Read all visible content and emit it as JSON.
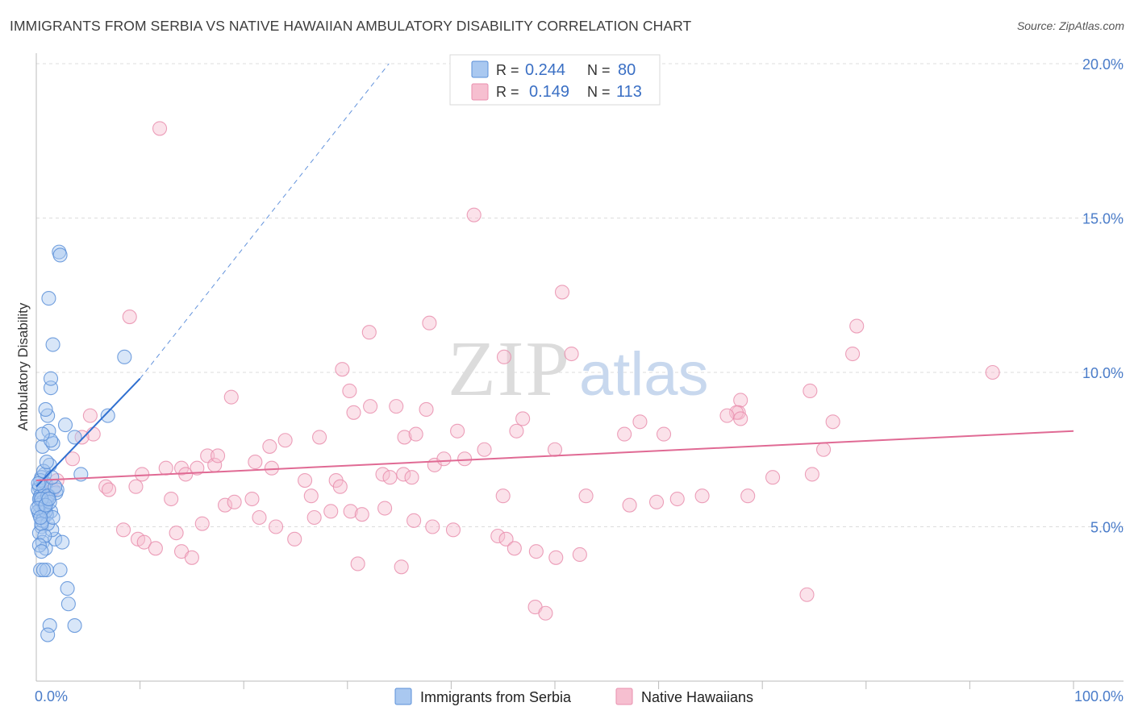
{
  "title": "IMMIGRANTS FROM SERBIA VS NATIVE HAWAIIAN AMBULATORY DISABILITY CORRELATION CHART",
  "source": "Source: ZipAtlas.com",
  "watermark": {
    "part1": "ZIP",
    "part2": "atlas"
  },
  "legend_top": {
    "series1": {
      "r_label": "R =",
      "r_value": "0.244",
      "n_label": "N =",
      "n_value": "80"
    },
    "series2": {
      "r_label": "R =",
      "r_value": "0.149",
      "n_label": "N =",
      "n_value": "113"
    }
  },
  "legend_bottom": {
    "series1": "Immigrants from Serbia",
    "series2": "Native Hawaiians"
  },
  "colors": {
    "blue_fill": "#a9c8f0",
    "blue_stroke": "#5a8fd8",
    "blue_line": "#2f6fd0",
    "pink_fill": "#f6bfd0",
    "pink_stroke": "#e98fae",
    "pink_line": "#e06a94",
    "grid": "#dcdcdc",
    "tick_text": "#4a7cc9"
  },
  "chart_data": {
    "type": "scatter",
    "title": "IMMIGRANTS FROM SERBIA VS NATIVE HAWAIIAN AMBULATORY DISABILITY CORRELATION CHART",
    "xlabel": "",
    "ylabel": "Ambulatory Disability",
    "xlim": [
      0,
      100
    ],
    "ylim": [
      0,
      20
    ],
    "x_tick_labels": [
      "0.0%",
      "100.0%"
    ],
    "y_ticks": [
      5,
      10,
      15,
      20
    ],
    "y_tick_labels": [
      "5.0%",
      "10.0%",
      "15.0%",
      "20.0%"
    ],
    "grid": true,
    "series": [
      {
        "name": "Immigrants from Serbia",
        "color": "#5a8fd8",
        "R": 0.244,
        "N": 80,
        "trend": {
          "x0": 0,
          "y0": 6.3,
          "x1": 10,
          "y1": 9.8,
          "dash_x1": 34,
          "dash_y1": 20.0
        },
        "points": [
          [
            0.3,
            5.4
          ],
          [
            0.5,
            5.6
          ],
          [
            0.4,
            5.9
          ],
          [
            0.6,
            6.1
          ],
          [
            0.3,
            6.3
          ],
          [
            0.8,
            5.7
          ],
          [
            0.7,
            5.3
          ],
          [
            0.5,
            5.0
          ],
          [
            1.0,
            5.8
          ],
          [
            1.2,
            6.0
          ],
          [
            0.9,
            6.4
          ],
          [
            1.4,
            5.5
          ],
          [
            0.3,
            4.8
          ],
          [
            0.6,
            4.5
          ],
          [
            0.9,
            4.3
          ],
          [
            1.8,
            4.6
          ],
          [
            1.5,
            4.9
          ],
          [
            0.4,
            3.6
          ],
          [
            1.0,
            3.6
          ],
          [
            0.7,
            3.6
          ],
          [
            2.3,
            3.6
          ],
          [
            3.0,
            3.0
          ],
          [
            3.1,
            2.5
          ],
          [
            1.3,
            1.8
          ],
          [
            3.7,
            1.8
          ],
          [
            1.1,
            1.5
          ],
          [
            0.8,
            6.7
          ],
          [
            1.3,
            7.0
          ],
          [
            0.6,
            7.6
          ],
          [
            1.6,
            7.7
          ],
          [
            1.2,
            8.1
          ],
          [
            3.7,
            7.9
          ],
          [
            4.3,
            6.7
          ],
          [
            1.1,
            8.6
          ],
          [
            0.9,
            8.8
          ],
          [
            1.4,
            9.5
          ],
          [
            1.4,
            9.8
          ],
          [
            1.6,
            10.9
          ],
          [
            1.2,
            12.4
          ],
          [
            2.2,
            13.9
          ],
          [
            2.3,
            13.8
          ],
          [
            8.5,
            10.5
          ],
          [
            6.9,
            8.6
          ],
          [
            0.5,
            6.6
          ],
          [
            0.2,
            6.2
          ],
          [
            0.4,
            6.0
          ],
          [
            0.6,
            5.8
          ],
          [
            0.8,
            5.6
          ],
          [
            1.0,
            5.4
          ],
          [
            0.3,
            5.7
          ],
          [
            0.2,
            5.5
          ],
          [
            0.6,
            5.2
          ],
          [
            1.1,
            5.1
          ],
          [
            0.4,
            6.5
          ],
          [
            0.7,
            6.3
          ],
          [
            1.9,
            6.1
          ],
          [
            2.0,
            6.2
          ],
          [
            0.3,
            5.9
          ],
          [
            0.5,
            5.1
          ],
          [
            0.9,
            5.5
          ],
          [
            1.1,
            6.0
          ],
          [
            1.3,
            5.8
          ],
          [
            0.2,
            6.4
          ],
          [
            0.8,
            4.7
          ],
          [
            1.6,
            5.3
          ],
          [
            0.5,
            5.9
          ],
          [
            0.1,
            5.6
          ],
          [
            0.7,
            6.8
          ],
          [
            1.0,
            7.1
          ],
          [
            1.4,
            7.8
          ],
          [
            0.6,
            8.0
          ],
          [
            2.5,
            4.5
          ],
          [
            1.8,
            6.3
          ],
          [
            0.4,
            5.3
          ],
          [
            0.9,
            5.7
          ],
          [
            1.2,
            5.9
          ],
          [
            0.3,
            4.4
          ],
          [
            0.5,
            4.2
          ],
          [
            2.8,
            8.3
          ],
          [
            1.5,
            6.6
          ]
        ]
      },
      {
        "name": "Native Hawaiians",
        "color": "#e98fae",
        "R": 0.149,
        "N": 113,
        "trend": {
          "x0": 0,
          "y0": 6.5,
          "x1": 100,
          "y1": 8.1
        },
        "points": [
          [
            11.9,
            17.9
          ],
          [
            42.2,
            15.1
          ],
          [
            50.7,
            12.6
          ],
          [
            9.0,
            11.8
          ],
          [
            32.1,
            11.3
          ],
          [
            37.9,
            11.6
          ],
          [
            79.1,
            11.5
          ],
          [
            45.1,
            10.5
          ],
          [
            51.6,
            10.6
          ],
          [
            78.7,
            10.6
          ],
          [
            92.2,
            10.0
          ],
          [
            29.5,
            10.1
          ],
          [
            30.2,
            9.4
          ],
          [
            18.8,
            9.2
          ],
          [
            32.2,
            8.9
          ],
          [
            30.6,
            8.7
          ],
          [
            34.7,
            8.9
          ],
          [
            37.6,
            8.8
          ],
          [
            67.9,
            9.1
          ],
          [
            67.7,
            8.7
          ],
          [
            67.5,
            8.7
          ],
          [
            67.9,
            8.5
          ],
          [
            66.6,
            8.6
          ],
          [
            74.6,
            9.4
          ],
          [
            76.8,
            8.4
          ],
          [
            58.2,
            8.4
          ],
          [
            60.5,
            8.0
          ],
          [
            40.6,
            8.1
          ],
          [
            35.5,
            7.9
          ],
          [
            36.6,
            8.0
          ],
          [
            46.3,
            8.1
          ],
          [
            46.9,
            8.5
          ],
          [
            27.3,
            7.9
          ],
          [
            24.0,
            7.8
          ],
          [
            22.5,
            7.6
          ],
          [
            41.3,
            7.2
          ],
          [
            43.2,
            7.5
          ],
          [
            50.0,
            7.5
          ],
          [
            56.7,
            8.0
          ],
          [
            75.9,
            7.5
          ],
          [
            5.2,
            8.6
          ],
          [
            5.5,
            8.0
          ],
          [
            4.4,
            7.9
          ],
          [
            3.5,
            7.2
          ],
          [
            2.0,
            6.5
          ],
          [
            1.6,
            6.2
          ],
          [
            0.9,
            6.0
          ],
          [
            6.7,
            6.3
          ],
          [
            7.0,
            6.2
          ],
          [
            9.6,
            6.3
          ],
          [
            10.2,
            6.7
          ],
          [
            12.5,
            6.9
          ],
          [
            13.0,
            5.9
          ],
          [
            14.0,
            6.9
          ],
          [
            14.4,
            6.7
          ],
          [
            15.5,
            6.9
          ],
          [
            16.5,
            7.3
          ],
          [
            17.2,
            7.0
          ],
          [
            17.5,
            7.3
          ],
          [
            21.1,
            7.1
          ],
          [
            22.7,
            6.9
          ],
          [
            25.9,
            6.5
          ],
          [
            26.5,
            6.0
          ],
          [
            28.9,
            6.5
          ],
          [
            29.3,
            6.3
          ],
          [
            33.4,
            6.7
          ],
          [
            34.1,
            6.6
          ],
          [
            35.4,
            6.7
          ],
          [
            36.2,
            6.6
          ],
          [
            38.4,
            7.0
          ],
          [
            39.3,
            7.2
          ],
          [
            45.0,
            6.0
          ],
          [
            53.0,
            6.0
          ],
          [
            57.2,
            5.7
          ],
          [
            59.8,
            5.8
          ],
          [
            61.8,
            5.9
          ],
          [
            64.2,
            6.0
          ],
          [
            68.6,
            6.0
          ],
          [
            71.0,
            6.6
          ],
          [
            74.8,
            6.7
          ],
          [
            13.5,
            4.8
          ],
          [
            8.4,
            4.9
          ],
          [
            9.8,
            4.6
          ],
          [
            10.4,
            4.5
          ],
          [
            11.5,
            4.3
          ],
          [
            14.0,
            4.2
          ],
          [
            15.0,
            4.0
          ],
          [
            16.0,
            5.1
          ],
          [
            18.2,
            5.7
          ],
          [
            19.1,
            5.8
          ],
          [
            20.8,
            5.9
          ],
          [
            21.5,
            5.3
          ],
          [
            23.1,
            5.0
          ],
          [
            24.9,
            4.6
          ],
          [
            26.8,
            5.3
          ],
          [
            28.4,
            5.5
          ],
          [
            30.3,
            5.5
          ],
          [
            31.4,
            5.4
          ],
          [
            33.6,
            5.6
          ],
          [
            36.4,
            5.2
          ],
          [
            38.2,
            5.0
          ],
          [
            40.2,
            4.9
          ],
          [
            44.5,
            4.7
          ],
          [
            45.3,
            4.6
          ],
          [
            46.1,
            4.3
          ],
          [
            48.2,
            4.2
          ],
          [
            50.1,
            4.0
          ],
          [
            52.4,
            4.1
          ],
          [
            31.0,
            3.8
          ],
          [
            35.2,
            3.7
          ],
          [
            48.1,
            2.4
          ],
          [
            49.1,
            2.2
          ],
          [
            74.3,
            2.8
          ]
        ]
      }
    ]
  }
}
